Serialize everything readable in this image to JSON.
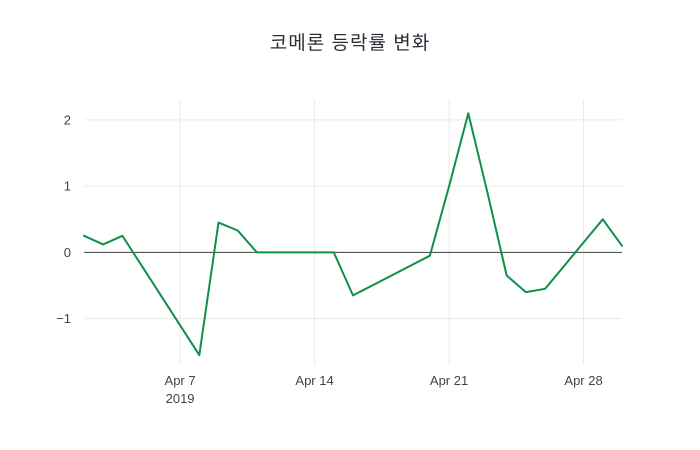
{
  "chart_data": {
    "type": "line",
    "title": "코메론 등락률 변화",
    "series_name": "등락률",
    "x": [
      "2019-04-02",
      "2019-04-03",
      "2019-04-04",
      "2019-04-05",
      "2019-04-06",
      "2019-04-07",
      "2019-04-08",
      "2019-04-09",
      "2019-04-10",
      "2019-04-11",
      "2019-04-12",
      "2019-04-13",
      "2019-04-14",
      "2019-04-15",
      "2019-04-16",
      "2019-04-17",
      "2019-04-18",
      "2019-04-19",
      "2019-04-20",
      "2019-04-21",
      "2019-04-22",
      "2019-04-23",
      "2019-04-24",
      "2019-04-25",
      "2019-04-26",
      "2019-04-27",
      "2019-04-28",
      "2019-04-29",
      "2019-04-30"
    ],
    "values": [
      0.25,
      0.12,
      0.25,
      -0.2,
      -0.65,
      -1.1,
      -1.55,
      0.45,
      0.33,
      0,
      0,
      0,
      0,
      0,
      -0.65,
      -0.5,
      -0.35,
      -0.2,
      -0.05,
      1.0,
      2.1,
      0.9,
      -0.35,
      -0.6,
      -0.55,
      -0.2,
      0.15,
      0.5,
      0.1
    ],
    "ylim": [
      -1.7,
      2.3
    ],
    "y_ticks": [
      {
        "v": 2,
        "label": "2"
      },
      {
        "v": 1,
        "label": "1"
      },
      {
        "v": 0,
        "label": "0"
      },
      {
        "v": -1,
        "label": "−1"
      }
    ],
    "x_ticks": [
      {
        "i": 5,
        "lines": [
          "Apr 7",
          "2019"
        ]
      },
      {
        "i": 12,
        "lines": [
          "Apr 14"
        ]
      },
      {
        "i": 19,
        "lines": [
          "Apr 21"
        ]
      },
      {
        "i": 26,
        "lines": [
          "Apr 28"
        ]
      }
    ],
    "grid": true,
    "zero_line": true,
    "legend_position": "none",
    "line_color": "#0f8f4a",
    "grid_color": "#eaeaea",
    "zero_line_color": "#3f3f3f",
    "tick_color": "#444444",
    "background": "#ffffff"
  }
}
